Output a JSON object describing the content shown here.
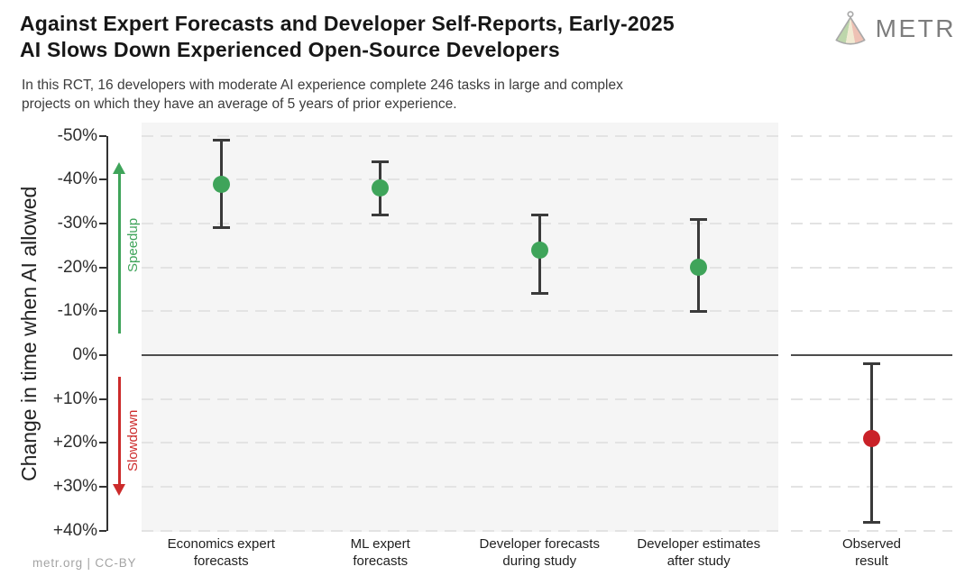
{
  "header": {
    "title_line1": "Against Expert Forecasts and Developer Self-Reports, Early-2025",
    "title_line2": "AI Slows Down Experienced Open-Source Developers",
    "subtitle_line1": "In this RCT, 16 developers with moderate AI experience complete 246 tasks in large and complex",
    "subtitle_line2": "projects on which they have an average of 5 years of prior experience.",
    "logo_text": "METR"
  },
  "footer": {
    "credit": "metr.org  |  CC-BY"
  },
  "chart_data": {
    "type": "scatter",
    "title": "Against Expert Forecasts and Developer Self-Reports, Early-2025 AI Slows Down Experienced Open-Source Developers",
    "y_axis_title": "Change in time when AI allowed",
    "y_unit": "percent change in completion time",
    "ylim": [
      -50,
      40
    ],
    "grid": "horizontal dashed every 10%, solid line at 0%",
    "zero_line_value": 0,
    "y_ticks": [
      {
        "value": -50,
        "label": "-50%"
      },
      {
        "value": -40,
        "label": "-40%"
      },
      {
        "value": -30,
        "label": "-30%"
      },
      {
        "value": -20,
        "label": "-20%"
      },
      {
        "value": -10,
        "label": "-10%"
      },
      {
        "value": 0,
        "label": "0%"
      },
      {
        "value": 10,
        "label": "+10%"
      },
      {
        "value": 20,
        "label": "+20%"
      },
      {
        "value": 30,
        "label": "+30%"
      },
      {
        "value": 40,
        "label": "+40%"
      }
    ],
    "annotations": {
      "speedup": {
        "label": "Speedup",
        "color": "#3fa45a",
        "direction": "up",
        "span_pct": [
          -5,
          -44
        ]
      },
      "slowdown": {
        "label": "Slowdown",
        "color": "#cc2b2b",
        "direction": "down",
        "span_pct": [
          5,
          32
        ]
      }
    },
    "panels": [
      {
        "name": "forecasts",
        "background": "#f5f5f5",
        "points": [
          {
            "label_line1": "Economics expert",
            "label_line2": "forecasts",
            "value": -39,
            "ci_low": -49,
            "ci_high": -29,
            "color": "#3fa45a"
          },
          {
            "label_line1": "ML expert",
            "label_line2": "forecasts",
            "value": -38,
            "ci_low": -44,
            "ci_high": -32,
            "color": "#3fa45a"
          },
          {
            "label_line1": "Developer forecasts",
            "label_line2": "during study",
            "value": -24,
            "ci_low": -32,
            "ci_high": -14,
            "color": "#3fa45a"
          },
          {
            "label_line1": "Developer estimates",
            "label_line2": "after study",
            "value": -20,
            "ci_low": -31,
            "ci_high": -10,
            "color": "#3fa45a"
          }
        ]
      },
      {
        "name": "observed",
        "background": "#ffffff",
        "points": [
          {
            "label_line1": "Observed",
            "label_line2": "result",
            "value": 19,
            "ci_low": 2,
            "ci_high": 38,
            "color": "#c92128"
          }
        ]
      }
    ]
  }
}
